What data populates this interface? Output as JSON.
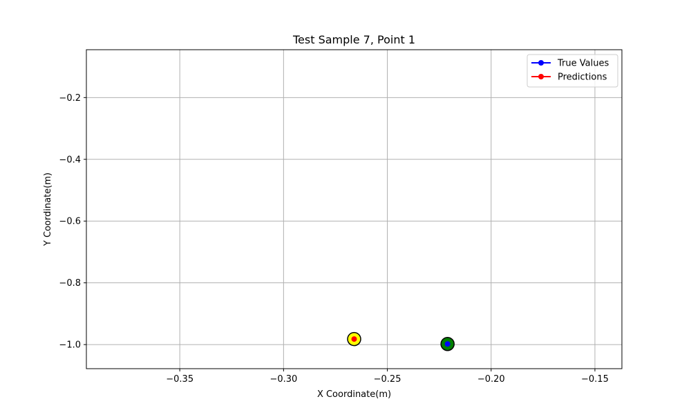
{
  "chart_data": {
    "type": "scatter",
    "title": "Test Sample 7, Point 1",
    "xlabel": "X Coordinate(m)",
    "ylabel": "Y Coordinate(m)",
    "xlim": [
      -0.395,
      -0.137
    ],
    "ylim": [
      -1.078,
      -0.045
    ],
    "xticks": [
      -0.35,
      -0.3,
      -0.25,
      -0.2,
      -0.15
    ],
    "xtick_labels": [
      "−0.35",
      "−0.30",
      "−0.25",
      "−0.20",
      "−0.15"
    ],
    "yticks": [
      -0.2,
      -0.4,
      -0.6,
      -0.8,
      -1.0
    ],
    "ytick_labels": [
      "−0.2",
      "−0.4",
      "−0.6",
      "−0.8",
      "−1.0"
    ],
    "grid": true,
    "legend": {
      "placement": "top-right"
    },
    "series": [
      {
        "name": "True Values",
        "color": "#0000ff",
        "ring_color": "#008000",
        "points": [
          {
            "x": -0.221,
            "y": -0.998
          }
        ]
      },
      {
        "name": "Predictions",
        "color": "#ff0000",
        "ring_color": "#ffff00",
        "points": [
          {
            "x": -0.266,
            "y": -0.982
          }
        ]
      }
    ]
  }
}
